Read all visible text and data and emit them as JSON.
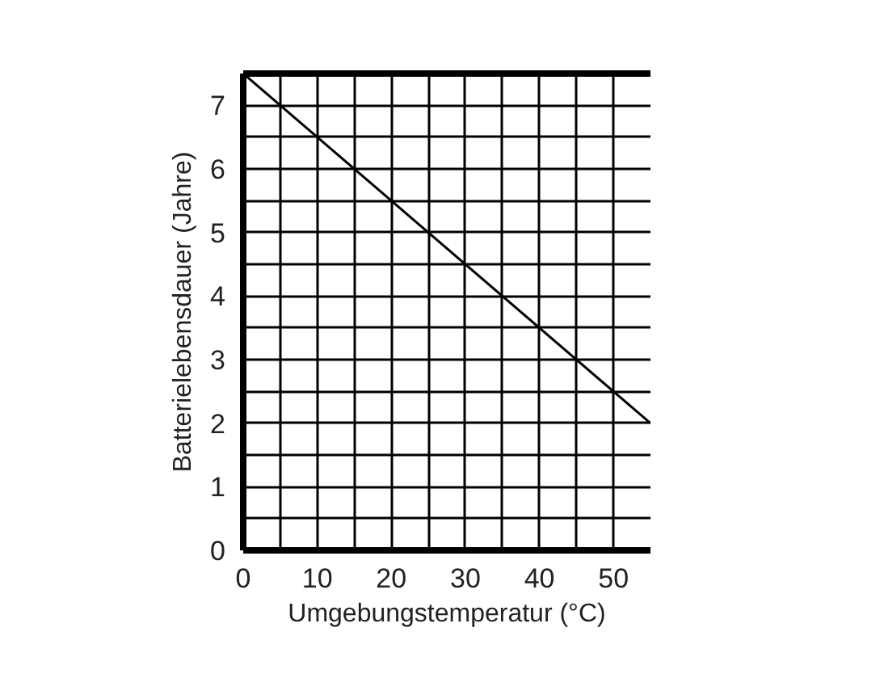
{
  "chart_data": {
    "type": "line",
    "xlabel": "Umgebungstemperatur (°C)",
    "ylabel": "Batterielebensdauer (Jahre)",
    "x": [
      0,
      55
    ],
    "series": [
      {
        "color": "#000000",
        "values": [
          7.5,
          2
        ]
      }
    ],
    "xlim": [
      0,
      55
    ],
    "ylim": [
      0,
      7.5
    ],
    "xticks": [
      0,
      {
        "value": 5,
        "label": null
      },
      10,
      {
        "value": 15,
        "label": null
      },
      20,
      {
        "value": 25,
        "label": null
      },
      30,
      {
        "value": 35,
        "label": null
      },
      40,
      {
        "value": 45,
        "label": null
      },
      50
    ],
    "yticks": [
      0,
      {
        "value": 0.5,
        "label": null
      },
      1,
      {
        "value": 1.5,
        "label": null
      },
      2,
      {
        "value": 2.5,
        "label": null
      },
      3,
      {
        "value": 3.5,
        "label": null
      },
      4,
      {
        "value": 4.5,
        "label": null
      },
      5,
      {
        "value": 5.5,
        "label": null
      },
      6,
      {
        "value": 6.5,
        "label": null
      },
      7
    ],
    "grid": true,
    "marker": "none",
    "line_style": "solid"
  }
}
